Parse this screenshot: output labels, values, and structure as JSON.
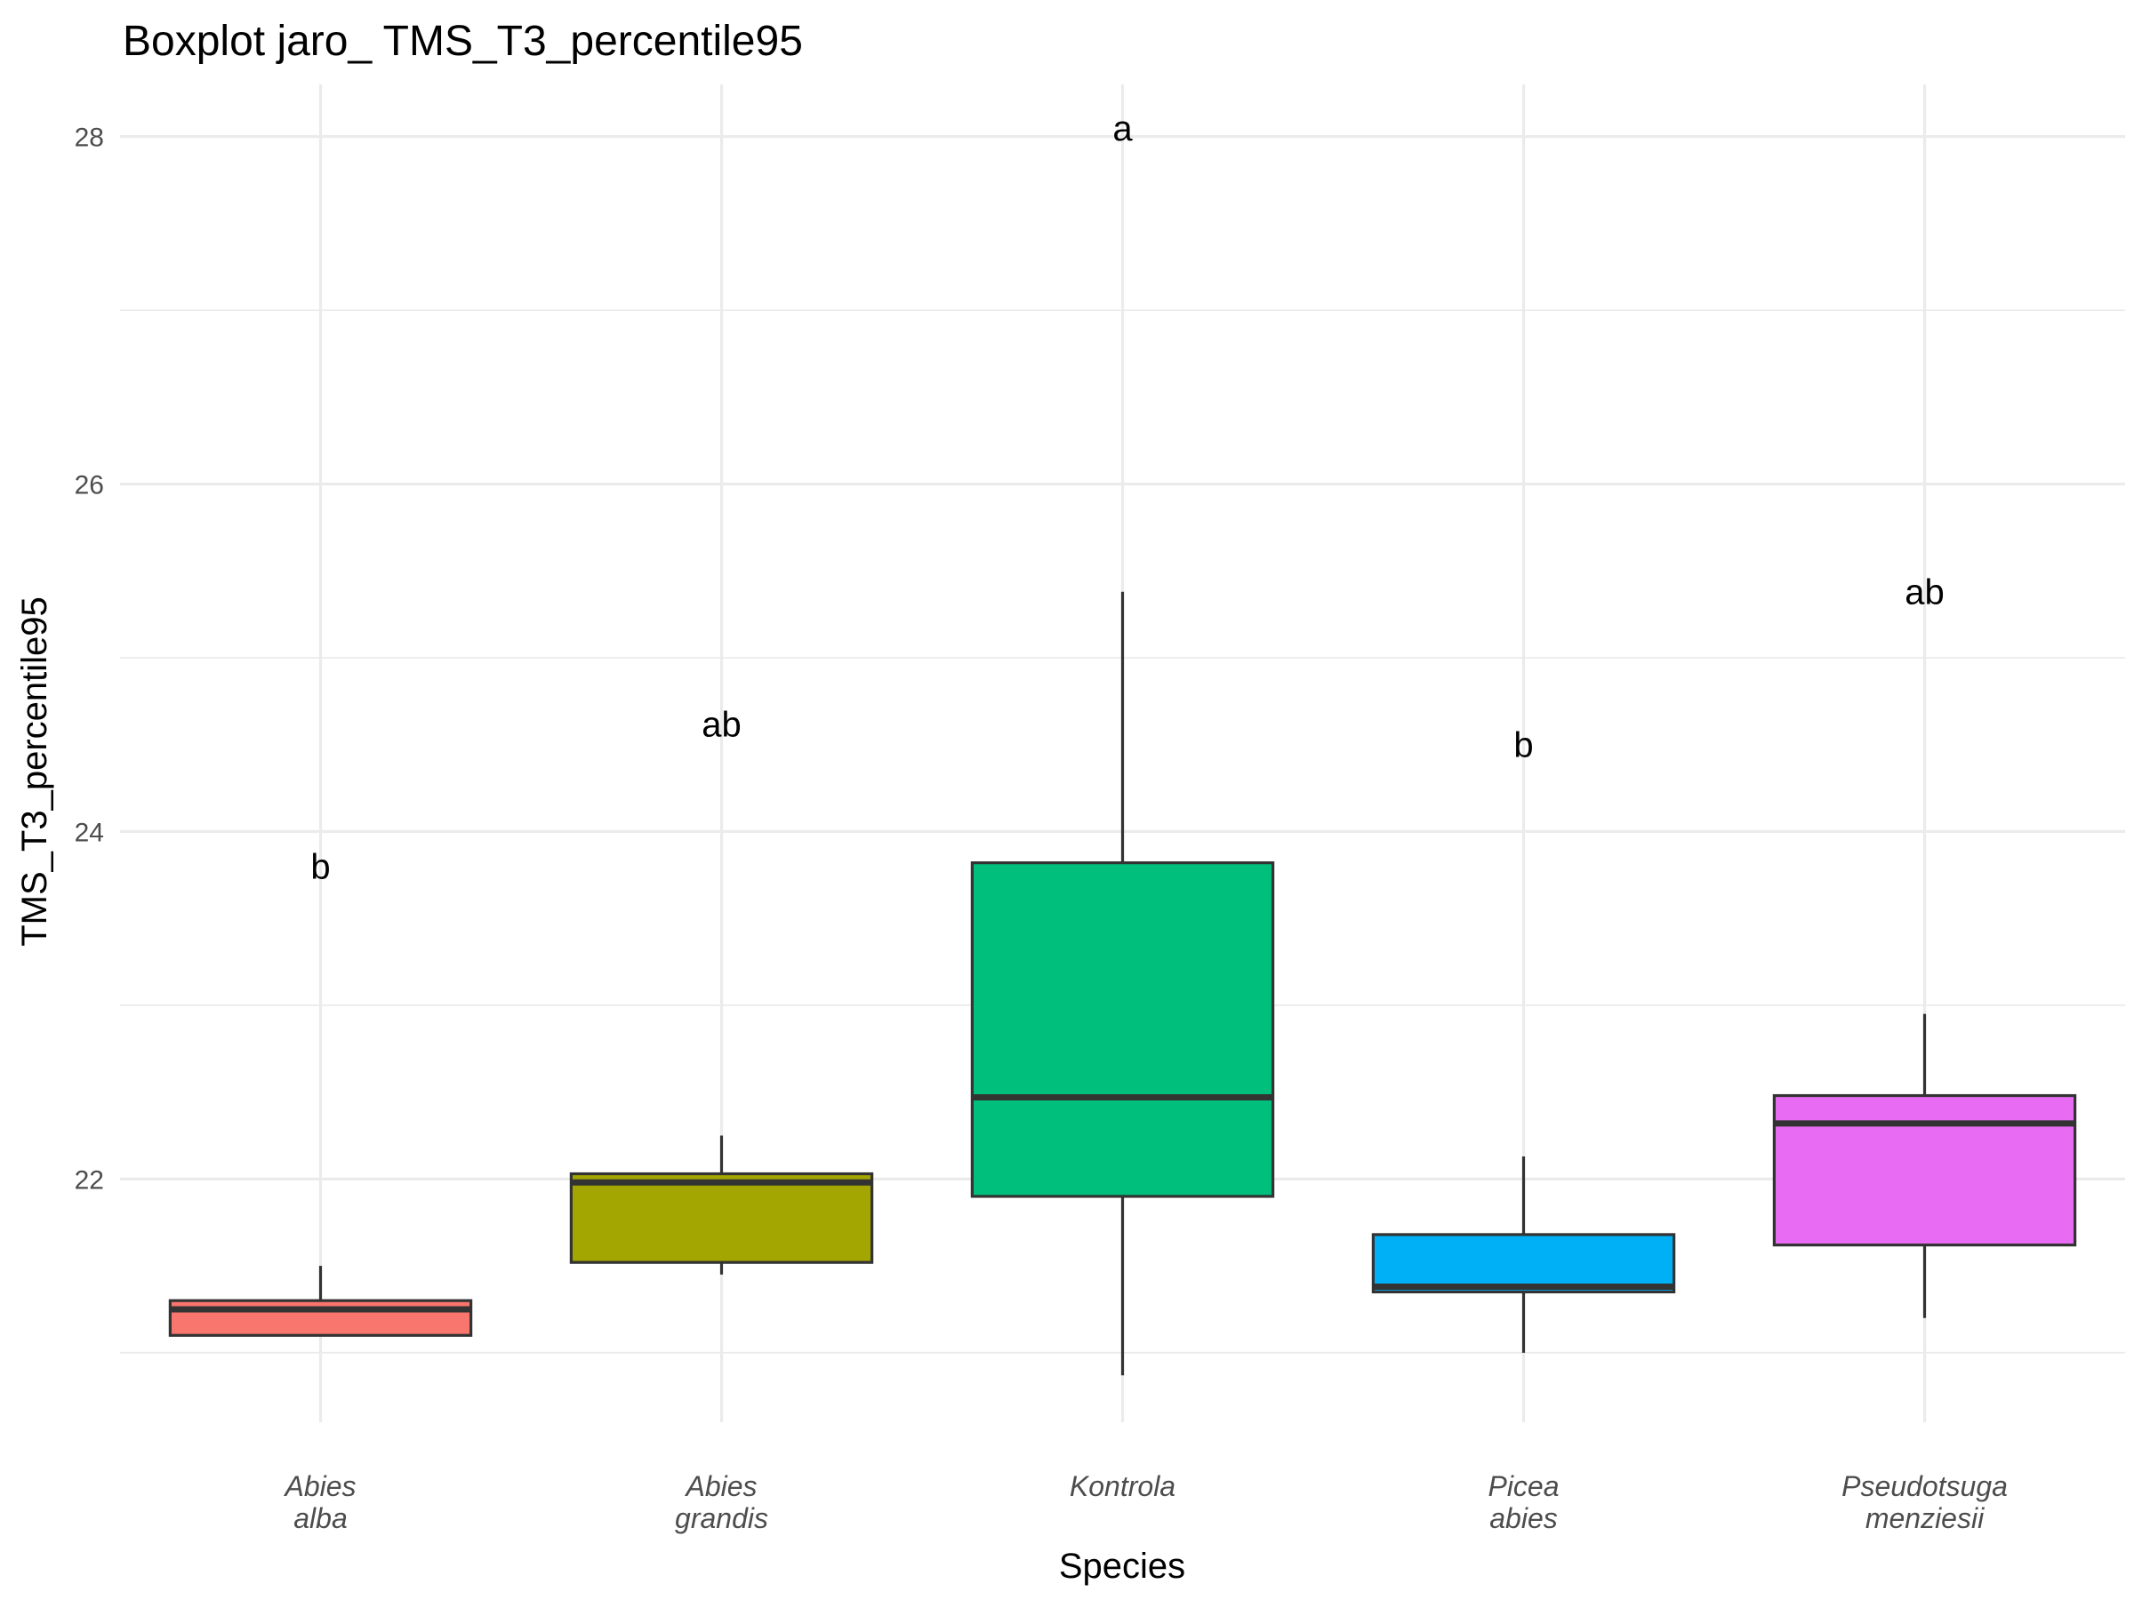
{
  "chart_data": {
    "type": "boxplot",
    "title": "Boxplot jaro_ TMS_T3_percentile95",
    "xlabel": "Species",
    "ylabel": "TMS_T3_percentile95",
    "ylim": [
      20.6,
      28.3
    ],
    "yticks": [
      22,
      24,
      26,
      28
    ],
    "grid": true,
    "legend": "none",
    "categories": [
      {
        "label_lines": [
          "Abies",
          "alba"
        ],
        "color": "#F8766D",
        "whisker_low": 21.1,
        "q1": 21.1,
        "median": 21.25,
        "q3": 21.3,
        "whisker_high": 21.5,
        "letter": "b",
        "letter_y": 23.8
      },
      {
        "label_lines": [
          "Abies",
          "grandis"
        ],
        "color": "#A3A500",
        "whisker_low": 21.45,
        "q1": 21.52,
        "median": 21.98,
        "q3": 22.03,
        "whisker_high": 22.25,
        "letter": "ab",
        "letter_y": 24.62
      },
      {
        "label_lines": [
          "Kontrola"
        ],
        "color": "#00BF7D",
        "whisker_low": 20.87,
        "q1": 21.9,
        "median": 22.47,
        "q3": 23.82,
        "whisker_high": 25.38,
        "letter": "a",
        "letter_y": 28.05
      },
      {
        "label_lines": [
          "Picea",
          "abies"
        ],
        "color": "#00B0F6",
        "whisker_low": 21.0,
        "q1": 21.35,
        "median": 21.38,
        "q3": 21.68,
        "whisker_high": 22.13,
        "letter": "b",
        "letter_y": 24.5
      },
      {
        "label_lines": [
          "Pseudotsuga",
          "menziesii"
        ],
        "color": "#E76BF3",
        "whisker_low": 21.2,
        "q1": 21.62,
        "median": 22.32,
        "q3": 22.48,
        "whisker_high": 22.95,
        "letter": "ab",
        "letter_y": 25.38
      }
    ]
  }
}
